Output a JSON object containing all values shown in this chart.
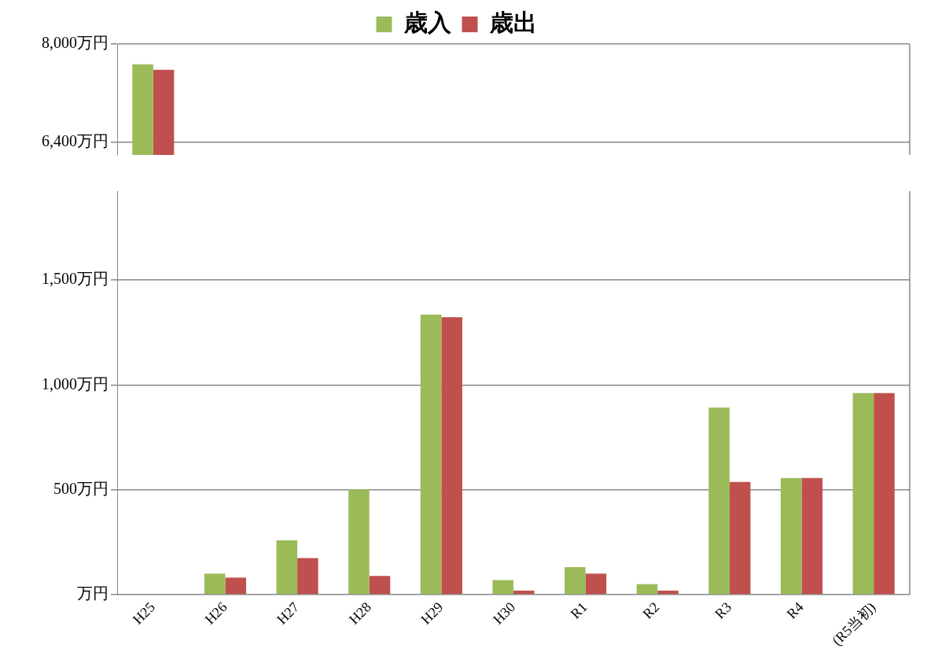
{
  "chart_data": [
    {
      "type": "bar",
      "categories": [
        null,
        null,
        null,
        null,
        null,
        null,
        null,
        null,
        null,
        null,
        null
      ],
      "series": [
        {
          "name": "歳入",
          "color": "#9bbb59",
          "values": [
            7670,
            null,
            null,
            null,
            null,
            null,
            null,
            null,
            null,
            null,
            null
          ]
        },
        {
          "name": "歳出",
          "color": "#c0504d",
          "values": [
            7580,
            null,
            null,
            null,
            null,
            null,
            null,
            null,
            null,
            null,
            null
          ]
        }
      ],
      "ylim": [
        6190,
        8000
      ],
      "yticks": [
        {
          "value": 6400,
          "label": "6,400万円"
        },
        {
          "value": 8000,
          "label": "8,000万円"
        }
      ],
      "grid": "y",
      "legend": "top",
      "tick_labels": "y"
    },
    {
      "type": "bar",
      "categories": [
        "H25",
        "H26",
        "H27",
        "H28",
        "H29",
        "H30",
        "R1",
        "R2",
        "R3",
        "R4",
        "(R5当初)"
      ],
      "series": [
        {
          "color": "#9bbb59",
          "values": [
            null,
            100,
            259,
            502,
            1336,
            69,
            131,
            50,
            892,
            556,
            961
          ]
        },
        {
          "color": "#c0504d",
          "values": [
            null,
            81,
            174,
            89,
            1324,
            19,
            100,
            19,
            537,
            556,
            961
          ]
        }
      ],
      "ylim": [
        0,
        1925
      ],
      "yticks": [
        {
          "value": 0,
          "label": "万円"
        },
        {
          "value": 500,
          "label": "500万円"
        },
        {
          "value": 1000,
          "label": "1,000万円"
        },
        {
          "value": 1500,
          "label": "1,500万円"
        }
      ],
      "grid": "y"
    }
  ]
}
